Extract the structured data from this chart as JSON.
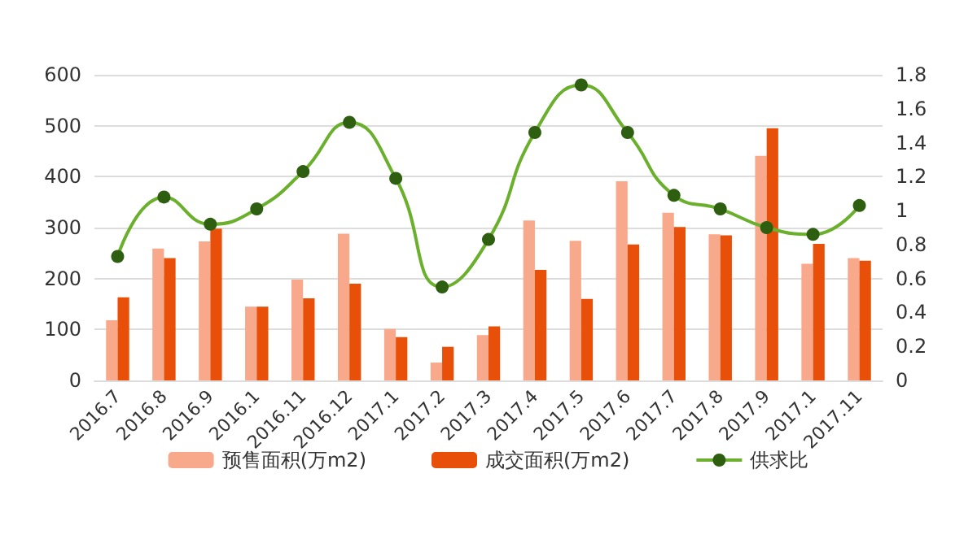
{
  "chart_data": {
    "type": "bar",
    "categories": [
      "2016.7",
      "2016.8",
      "2016.9",
      "2016.1",
      "2016.11",
      "2016.12",
      "2017.1",
      "2017.2",
      "2017.3",
      "2017.4",
      "2017.5",
      "2017.6",
      "2017.7",
      "2017.8",
      "2017.9",
      "2017.1",
      "2017.11"
    ],
    "series": [
      {
        "name": "预售面积(万m2)",
        "color": "#f9a98b",
        "values": [
          118,
          259,
          273,
          145,
          198,
          288,
          101,
          35,
          89,
          314,
          274,
          391,
          329,
          287,
          441,
          229,
          240
        ]
      },
      {
        "name": "成交面积(万m2)",
        "color": "#e8500a",
        "values": [
          163,
          240,
          298,
          145,
          161,
          190,
          85,
          66,
          106,
          217,
          160,
          267,
          301,
          285,
          495,
          268,
          235
        ]
      },
      {
        "name": "供求比",
        "type": "line",
        "axis": "y2",
        "color": "#6ab02c",
        "values": [
          0.73,
          1.08,
          0.92,
          1.01,
          1.23,
          1.52,
          1.19,
          0.55,
          0.83,
          1.46,
          1.74,
          1.46,
          1.09,
          1.01,
          0.9,
          0.86,
          1.03
        ]
      }
    ],
    "ylim": [
      0,
      600
    ],
    "yticks": [
      0,
      100,
      200,
      300,
      400,
      500,
      600
    ],
    "y2lim": [
      0,
      1.8
    ],
    "y2ticks": [
      0,
      0.2,
      0.4,
      0.6,
      0.8,
      1,
      1.2,
      1.4,
      1.6,
      1.8
    ],
    "grid": "y",
    "legend": "bottom",
    "marker": "circle",
    "line_style": "solid"
  }
}
